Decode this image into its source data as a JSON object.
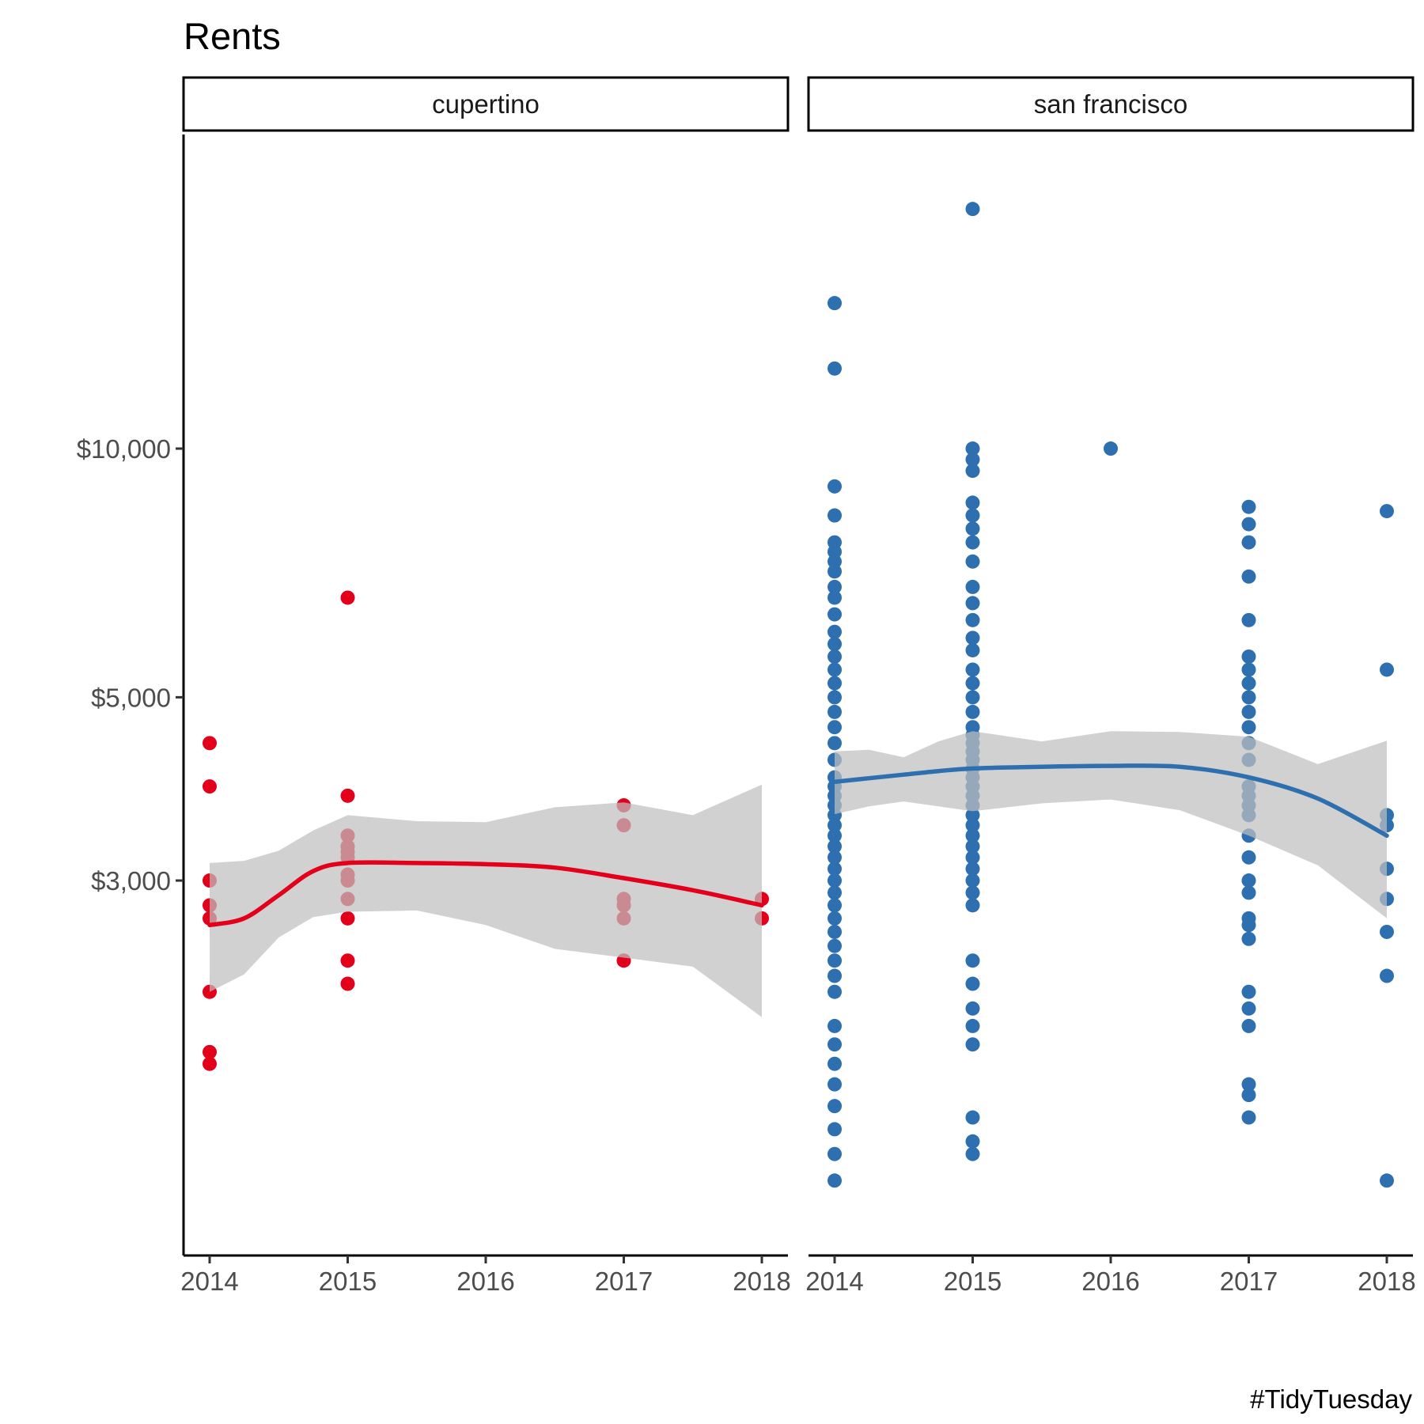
{
  "title": "Rents",
  "caption": "#TidyTuesday",
  "chart_data": {
    "type": "scatter",
    "title": "Rents",
    "xlabel": "",
    "ylabel": "",
    "x_ticks": [
      2014,
      2015,
      2016,
      2017,
      2018
    ],
    "y_ticks": [
      {
        "value": 3000,
        "label": "$3,000"
      },
      {
        "value": 5000,
        "label": "$5,000"
      },
      {
        "value": 10000,
        "label": "$10,000"
      }
    ],
    "y_scale": "log10",
    "xlim": [
      2013.8,
      2018.2
    ],
    "ylim": [
      1055,
      24000
    ],
    "grid": false,
    "legend": "none",
    "overlay": "loess smooth with confidence band",
    "panels": [
      {
        "name": "cupertino",
        "color": "#E3001B",
        "points": [
          {
            "x": 2014,
            "y": [
              4400,
              3900,
              3000,
              2800,
              2700,
              2200,
              1860,
              1800
            ]
          },
          {
            "x": 2015,
            "y": [
              6600,
              3800,
              3400,
              3300,
              3250,
              3200,
              3050,
              3000,
              2850,
              2700,
              2400,
              2250
            ]
          },
          {
            "x": 2017,
            "y": [
              3700,
              3500,
              2850,
              2800,
              2700,
              2400
            ]
          },
          {
            "x": 2018,
            "y": [
              2850,
              2700
            ]
          }
        ],
        "trend": {
          "x": [
            2014,
            2014.25,
            2014.5,
            2014.75,
            2015,
            2015.5,
            2016,
            2016.5,
            2017,
            2017.5,
            2018
          ],
          "y": [
            2650,
            2700,
            2880,
            3080,
            3150,
            3150,
            3140,
            3110,
            3020,
            2920,
            2800
          ],
          "lower": [
            2200,
            2310,
            2560,
            2710,
            2750,
            2760,
            2650,
            2480,
            2420,
            2360,
            2050
          ],
          "upper": [
            3150,
            3170,
            3260,
            3450,
            3600,
            3540,
            3530,
            3680,
            3730,
            3600,
            3920
          ]
        }
      },
      {
        "name": "san francisco",
        "color": "#2E6FAF",
        "points": [
          {
            "x": 2014,
            "y": [
              15000,
              12500,
              9000,
              8300,
              7700,
              7500,
              7300,
              7100,
              6800,
              6600,
              6300,
              6000,
              5800,
              5600,
              5400,
              5200,
              5000,
              4800,
              4600,
              4400,
              4200,
              4000,
              3900,
              3800,
              3700,
              3600,
              3500,
              3400,
              3300,
              3200,
              3100,
              3000,
              2900,
              2800,
              2700,
              2600,
              2500,
              2400,
              2300,
              2200,
              2000,
              1900,
              1800,
              1700,
              1600,
              1500,
              1400,
              1300
            ]
          },
          {
            "x": 2015,
            "y": [
              19500,
              10000,
              9700,
              9400,
              8600,
              8300,
              8000,
              7700,
              7300,
              6800,
              6500,
              6200,
              5900,
              5700,
              5400,
              5200,
              5000,
              4800,
              4600,
              4500,
              4400,
              4300,
              4200,
              4100,
              4000,
              3900,
              3800,
              3700,
              3600,
              3500,
              3400,
              3300,
              3200,
              3100,
              3000,
              2900,
              2800,
              2400,
              2250,
              2100,
              2000,
              1900,
              1550,
              1450,
              1400
            ]
          },
          {
            "x": 2016,
            "y": [
              10000
            ]
          },
          {
            "x": 2017,
            "y": [
              8500,
              8100,
              7700,
              7000,
              6200,
              5600,
              5400,
              5200,
              5000,
              4800,
              4600,
              4400,
              4200,
              3900,
              3800,
              3700,
              3600,
              3400,
              3200,
              3000,
              2900,
              2700,
              2650,
              2550,
              2200,
              2100,
              2000,
              1700,
              1650,
              1550
            ]
          },
          {
            "x": 2018,
            "y": [
              8400,
              5400,
              3600,
              3500,
              3100,
              2850,
              2600,
              2300,
              1300
            ]
          }
        ],
        "trend": {
          "x": [
            2014,
            2014.25,
            2014.5,
            2014.75,
            2015,
            2015.5,
            2016,
            2016.5,
            2017,
            2017.5,
            2018
          ],
          "y": [
            3950,
            3990,
            4030,
            4070,
            4100,
            4120,
            4130,
            4120,
            4000,
            3770,
            3400
          ],
          "lower": [
            3610,
            3690,
            3740,
            3690,
            3640,
            3720,
            3760,
            3650,
            3400,
            3130,
            2700
          ],
          "upper": [
            4300,
            4320,
            4230,
            4420,
            4550,
            4420,
            4550,
            4540,
            4480,
            4150,
            4430
          ]
        }
      }
    ]
  }
}
